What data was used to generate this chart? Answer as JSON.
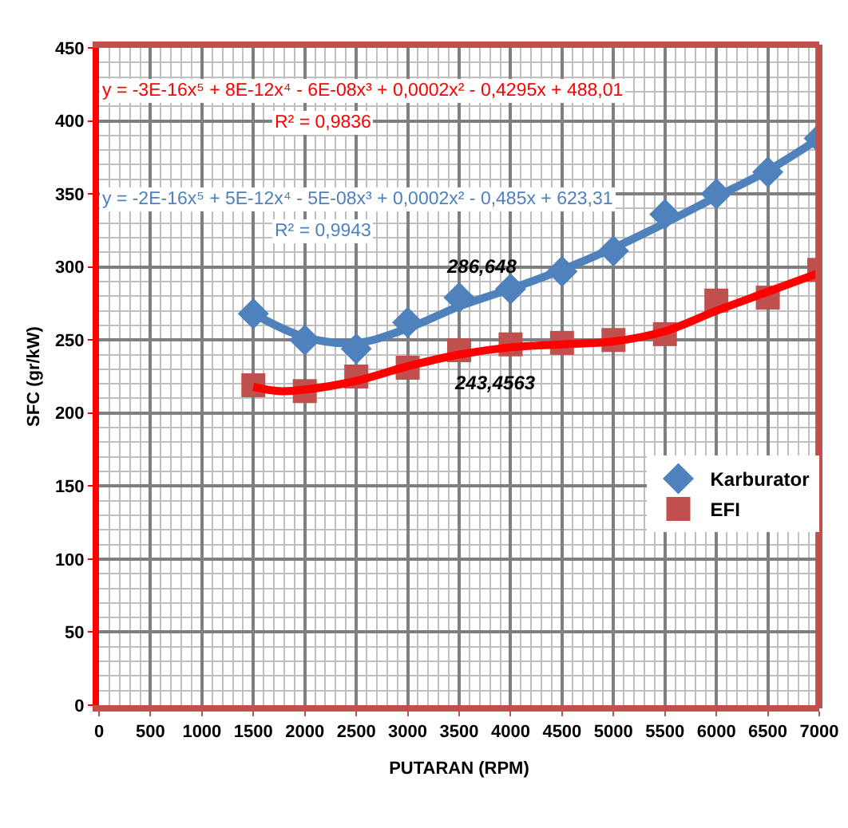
{
  "chart_data": {
    "type": "scatter",
    "xlabel": "PUTARAN (RPM)",
    "ylabel": "SFC (gr/kW)",
    "xlim": [
      0,
      7000
    ],
    "xticks": [
      0,
      500,
      1000,
      1500,
      2000,
      2500,
      3000,
      3500,
      4000,
      4500,
      5000,
      5500,
      6000,
      6500,
      7000
    ],
    "ylim": [
      0,
      450
    ],
    "yticks": [
      0,
      50,
      100,
      150,
      200,
      250,
      300,
      350,
      400,
      450
    ],
    "grid": true,
    "legend": "right",
    "x": [
      1500,
      2000,
      2500,
      3000,
      3500,
      4000,
      4500,
      5000,
      5500,
      6000,
      6500,
      7000
    ],
    "series": [
      {
        "name": "Karburator",
        "marker": "diamond",
        "color": "#4f81bd",
        "values": [
          268,
          250,
          244,
          262,
          279,
          285,
          297,
          311,
          336,
          350,
          365,
          388
        ]
      },
      {
        "name": "EFI",
        "marker": "square",
        "color": "#c0504d",
        "values": [
          219,
          215,
          225,
          231,
          243,
          247,
          248,
          250,
          254,
          277,
          279,
          298
        ]
      },
      {
        "type": "line",
        "color": "#4f81bd",
        "x": [
          1500,
          2000,
          2500,
          3000,
          3500,
          4000,
          4500,
          5000,
          5500,
          6000,
          6500,
          7000
        ],
        "values": [
          268,
          252,
          248,
          258,
          273,
          285,
          298,
          313,
          330,
          348,
          366,
          388
        ]
      },
      {
        "type": "line",
        "color": "#ff0000",
        "x": [
          1500,
          1750,
          2000,
          2500,
          3000,
          3500,
          4000,
          4500,
          5000,
          5500,
          6000,
          6500,
          7000
        ],
        "values": [
          218,
          215,
          216,
          222,
          232,
          240,
          245,
          247,
          249,
          256,
          270,
          283,
          296
        ]
      }
    ],
    "annotations": [
      "y = -3E-16x⁵ + 8E-12x⁴ - 6E-08x³ + 0,0002x² - 0,4295x + 488,01",
      "R² = 0,9836",
      "y = -2E-16x⁵ + 5E-12x⁴ - 5E-08x³ + 0,0002x² - 0,485x + 623,31",
      "R² = 0,9943",
      {
        "text": "286,648",
        "x": 4000,
        "y": 285
      },
      {
        "text": "243,4563",
        "x": 3500,
        "y": 243
      }
    ]
  }
}
